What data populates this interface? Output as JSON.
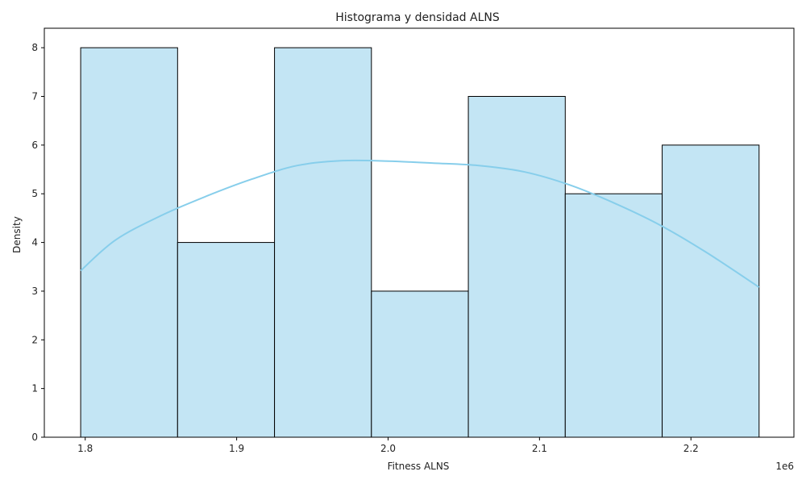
{
  "chart_data": {
    "type": "bar",
    "subtype": "histogram-with-kde",
    "title": "Histograma y densidad ALNS",
    "xlabel": "Fitness ALNS",
    "ylabel": "Density",
    "x_offset_label": "1e6",
    "bins": [
      {
        "start": 1.797,
        "end": 1.861,
        "count": 8
      },
      {
        "start": 1.861,
        "end": 1.925,
        "count": 4
      },
      {
        "start": 1.925,
        "end": 1.989,
        "count": 8
      },
      {
        "start": 1.989,
        "end": 2.053,
        "count": 3
      },
      {
        "start": 2.053,
        "end": 2.117,
        "count": 7
      },
      {
        "start": 2.117,
        "end": 2.181,
        "count": 5
      },
      {
        "start": 2.181,
        "end": 2.245,
        "count": 6
      }
    ],
    "kde": {
      "x": [
        1.797,
        1.82,
        1.85,
        1.88,
        1.91,
        1.94,
        1.97,
        2.0,
        2.03,
        2.06,
        2.09,
        2.12,
        2.15,
        2.18,
        2.21,
        2.245
      ],
      "y": [
        3.42,
        4.05,
        4.55,
        4.95,
        5.3,
        5.58,
        5.68,
        5.67,
        5.63,
        5.58,
        5.45,
        5.18,
        4.8,
        4.35,
        3.8,
        3.08
      ]
    },
    "xticks": [
      1.8,
      1.9,
      2.0,
      2.1,
      2.2
    ],
    "xtick_labels": [
      "1.8",
      "1.9",
      "2.0",
      "2.1",
      "2.2"
    ],
    "yticks": [
      0,
      1,
      2,
      3,
      4,
      5,
      6,
      7,
      8
    ],
    "xlim": [
      1.773,
      2.268
    ],
    "ylim": [
      0,
      8.4
    ],
    "grid": false,
    "legend": "none",
    "colors": {
      "bar_fill": "#c3e5f4",
      "bar_edge": "#000000",
      "kde_line": "#87ceeb"
    }
  }
}
